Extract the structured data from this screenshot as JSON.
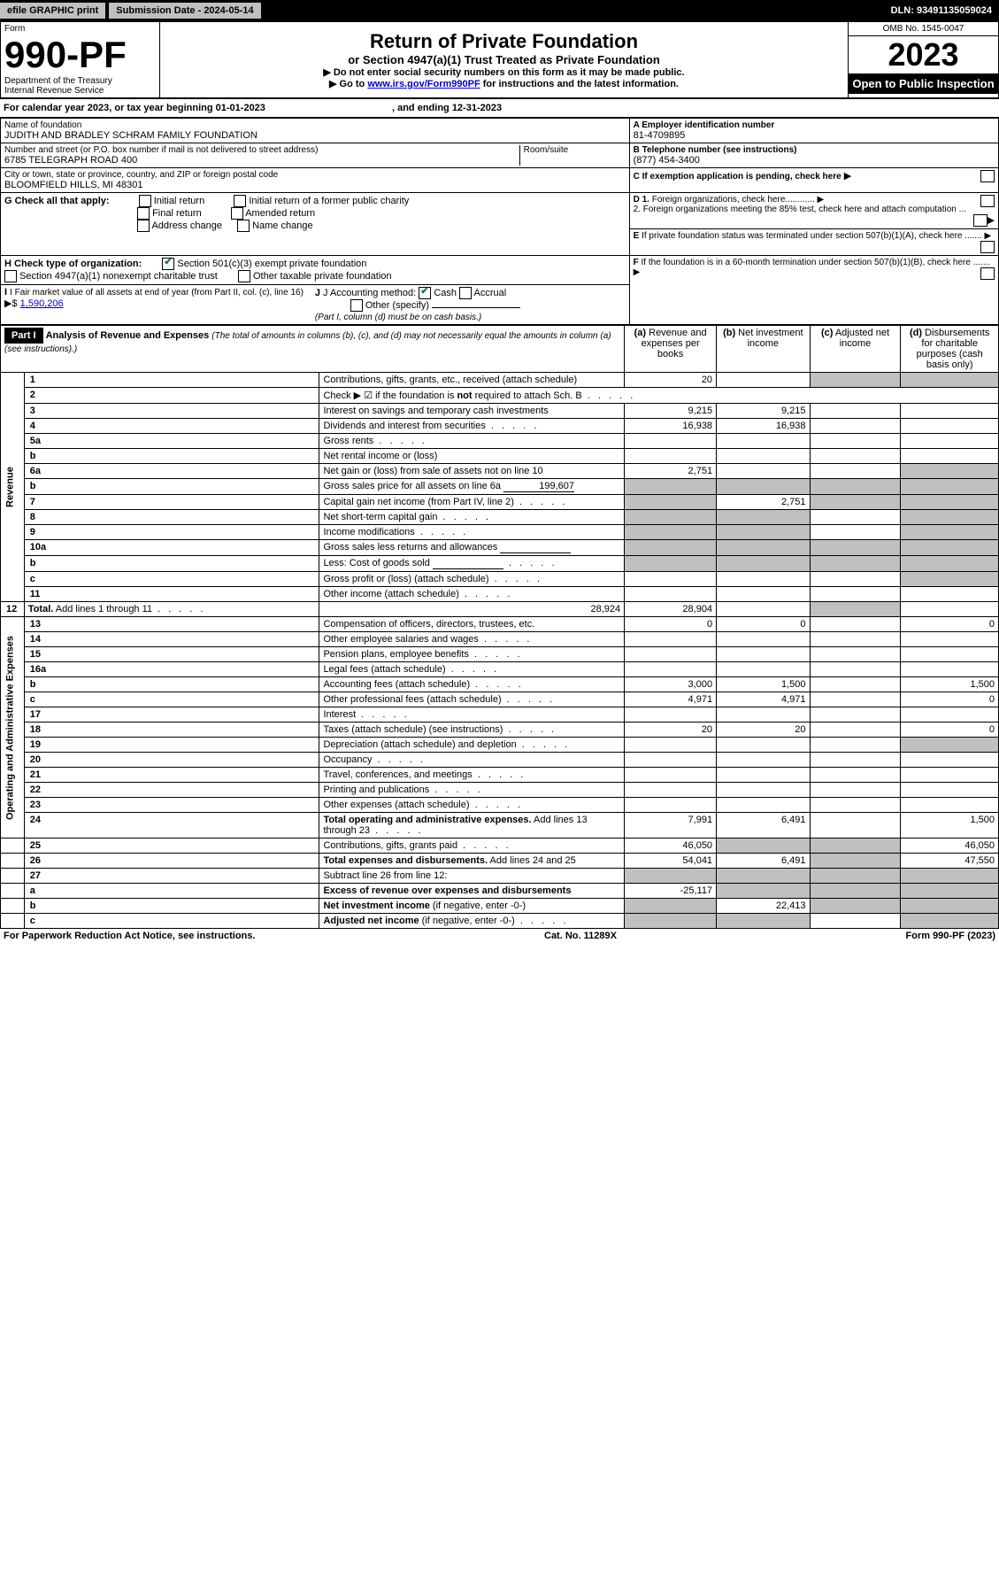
{
  "top_bar": {
    "efile": "efile GRAPHIC print",
    "submission": "Submission Date - 2024-05-14",
    "dln": "DLN: 93491135059024"
  },
  "header": {
    "form_label": "Form",
    "form_no": "990-PF",
    "dept": "Department of the Treasury",
    "irs": "Internal Revenue Service",
    "title": "Return of Private Foundation",
    "subtitle": "or Section 4947(a)(1) Trust Treated as Private Foundation",
    "note1": "▶ Do not enter social security numbers on this form as it may be made public.",
    "note2_pre": "▶ Go to ",
    "note2_link": "www.irs.gov/Form990PF",
    "note2_post": " for instructions and the latest information.",
    "omb": "OMB No. 1545-0047",
    "year": "2023",
    "open_pub": "Open to Public Inspection"
  },
  "cal_year": {
    "text": "For calendar year 2023, or tax year beginning 01-01-2023",
    "ending": ", and ending 12-31-2023"
  },
  "org": {
    "name_label": "Name of foundation",
    "name": "JUDITH AND BRADLEY SCHRAM FAMILY FOUNDATION",
    "addr_label": "Number and street (or P.O. box number if mail is not delivered to street address)",
    "addr": "6785 TELEGRAPH ROAD 400",
    "room_label": "Room/suite",
    "city_label": "City or town, state or province, country, and ZIP or foreign postal code",
    "city": "BLOOMFIELD HILLS, MI  48301",
    "ein_label": "A Employer identification number",
    "ein": "81-4709895",
    "phone_label": "B Telephone number (see instructions)",
    "phone": "(877) 454-3400",
    "c_label": "C If exemption application is pending, check here",
    "d1_label": "D 1. Foreign organizations, check here............",
    "d2_label": "2. Foreign organizations meeting the 85% test, check here and attach computation ...",
    "e_label": "E  If private foundation status was terminated under section 507(b)(1)(A), check here .......",
    "f_label": "F  If the foundation is in a 60-month termination under section 507(b)(1)(B), check here .......",
    "g_label": "G Check all that apply:",
    "g_opts": [
      "Initial return",
      "Initial return of a former public charity",
      "Final return",
      "Amended return",
      "Address change",
      "Name change"
    ],
    "h_label": "H Check type of organization:",
    "h_opt1": "Section 501(c)(3) exempt private foundation",
    "h_opt2": "Section 4947(a)(1) nonexempt charitable trust",
    "h_opt3": "Other taxable private foundation",
    "i_label": "I Fair market value of all assets at end of year (from Part II, col. (c), line 16)",
    "i_value": "1,590,206",
    "j_label": "J Accounting method:",
    "j_cash": "Cash",
    "j_accrual": "Accrual",
    "j_other": "Other (specify)",
    "j_note": "(Part I, column (d) must be on cash basis.)"
  },
  "part1": {
    "label": "Part I",
    "title": "Analysis of Revenue and Expenses",
    "title_note": " (The total of amounts in columns (b), (c), and (d) may not necessarily equal the amounts in column (a) (see instructions).)",
    "col_a": "(a)  Revenue and expenses per books",
    "col_b": "(b)  Net investment income",
    "col_c": "(c)  Adjusted net income",
    "col_d": "(d)  Disbursements for charitable purposes (cash basis only)"
  },
  "sections": {
    "revenue": "Revenue",
    "opex": "Operating and Administrative Expenses"
  },
  "rows": [
    {
      "n": "1",
      "desc": "Contributions, gifts, grants, etc., received (attach schedule)",
      "a": "20",
      "b": "",
      "c_sh": true,
      "d_sh": true
    },
    {
      "n": "2",
      "desc": "Check ▶ ☑ if the foundation is <b>not</b> required to attach Sch. B",
      "dots": true,
      "merged": true
    },
    {
      "n": "3",
      "desc": "Interest on savings and temporary cash investments",
      "a": "9,215",
      "b": "9,215"
    },
    {
      "n": "4",
      "desc": "Dividends and interest from securities",
      "a": "16,938",
      "b": "16,938",
      "dots": true
    },
    {
      "n": "5a",
      "desc": "Gross rents",
      "dots": true
    },
    {
      "n": "b",
      "desc": "Net rental income or (loss)",
      "underline": true
    },
    {
      "n": "6a",
      "desc": "Net gain or (loss) from sale of assets not on line 10",
      "a": "2,751",
      "d_sh": true
    },
    {
      "n": "b",
      "desc": "Gross sales price for all assets on line 6a",
      "ul_val": "199,607",
      "a_sh": true,
      "b_sh": true,
      "c_sh": true,
      "d_sh": true
    },
    {
      "n": "7",
      "desc": "Capital gain net income (from Part IV, line 2)",
      "a_sh": true,
      "b": "2,751",
      "c_sh": true,
      "d_sh": true,
      "dots": true
    },
    {
      "n": "8",
      "desc": "Net short-term capital gain",
      "a_sh": true,
      "b_sh": true,
      "d_sh": true,
      "dots": true
    },
    {
      "n": "9",
      "desc": "Income modifications",
      "a_sh": true,
      "b_sh": true,
      "d_sh": true,
      "dots": true
    },
    {
      "n": "10a",
      "desc": "Gross sales less returns and allowances",
      "ul_box": true,
      "a_sh": true,
      "b_sh": true,
      "c_sh": true,
      "d_sh": true
    },
    {
      "n": "b",
      "desc": "Less: Cost of goods sold",
      "ul_box": true,
      "a_sh": true,
      "b_sh": true,
      "c_sh": true,
      "d_sh": true,
      "dots": true
    },
    {
      "n": "c",
      "desc": "Gross profit or (loss) (attach schedule)",
      "d_sh": true,
      "dots": true
    },
    {
      "n": "11",
      "desc": "Other income (attach schedule)",
      "dots": true
    },
    {
      "n": "12",
      "desc": "<b>Total.</b> Add lines 1 through 11",
      "a": "28,924",
      "b": "28,904",
      "d_sh": true,
      "dots": true
    },
    {
      "n": "13",
      "desc": "Compensation of officers, directors, trustees, etc.",
      "a": "0",
      "b": "0",
      "d": "0"
    },
    {
      "n": "14",
      "desc": "Other employee salaries and wages",
      "dots": true
    },
    {
      "n": "15",
      "desc": "Pension plans, employee benefits",
      "dots": true
    },
    {
      "n": "16a",
      "desc": "Legal fees (attach schedule)",
      "dots": true
    },
    {
      "n": "b",
      "desc": "Accounting fees (attach schedule)",
      "a": "3,000",
      "b": "1,500",
      "d": "1,500",
      "dots": true
    },
    {
      "n": "c",
      "desc": "Other professional fees (attach schedule)",
      "a": "4,971",
      "b": "4,971",
      "d": "0",
      "dots": true
    },
    {
      "n": "17",
      "desc": "Interest",
      "dots": true
    },
    {
      "n": "18",
      "desc": "Taxes (attach schedule) (see instructions)",
      "a": "20",
      "b": "20",
      "d": "0",
      "dots": true
    },
    {
      "n": "19",
      "desc": "Depreciation (attach schedule) and depletion",
      "d_sh": true,
      "dots": true
    },
    {
      "n": "20",
      "desc": "Occupancy",
      "dots": true
    },
    {
      "n": "21",
      "desc": "Travel, conferences, and meetings",
      "dots": true
    },
    {
      "n": "22",
      "desc": "Printing and publications",
      "dots": true
    },
    {
      "n": "23",
      "desc": "Other expenses (attach schedule)",
      "dots": true
    },
    {
      "n": "24",
      "desc": "<b>Total operating and administrative expenses.</b> Add lines 13 through 23",
      "a": "7,991",
      "b": "6,491",
      "d": "1,500",
      "dots": true
    },
    {
      "n": "25",
      "desc": "Contributions, gifts, grants paid",
      "a": "46,050",
      "b_sh": true,
      "c_sh": true,
      "d": "46,050",
      "dots": true
    },
    {
      "n": "26",
      "desc": "<b>Total expenses and disbursements.</b> Add lines 24 and 25",
      "a": "54,041",
      "b": "6,491",
      "c_sh": true,
      "d": "47,550"
    },
    {
      "n": "27",
      "desc": "Subtract line 26 from line 12:",
      "a_sh": true,
      "b_sh": true,
      "c_sh": true,
      "d_sh": true
    },
    {
      "n": "a",
      "desc": "<b>Excess of revenue over expenses and disbursements</b>",
      "a": "-25,117",
      "b_sh": true,
      "c_sh": true,
      "d_sh": true
    },
    {
      "n": "b",
      "desc": "<b>Net investment income</b> (if negative, enter -0-)",
      "a_sh": true,
      "b": "22,413",
      "c_sh": true,
      "d_sh": true
    },
    {
      "n": "c",
      "desc": "<b>Adjusted net income</b> (if negative, enter -0-)",
      "a_sh": true,
      "b_sh": true,
      "d_sh": true,
      "dots": true
    }
  ],
  "footer": {
    "left": "For Paperwork Reduction Act Notice, see instructions.",
    "mid": "Cat. No. 11289X",
    "right": "Form 990-PF (2023)"
  }
}
